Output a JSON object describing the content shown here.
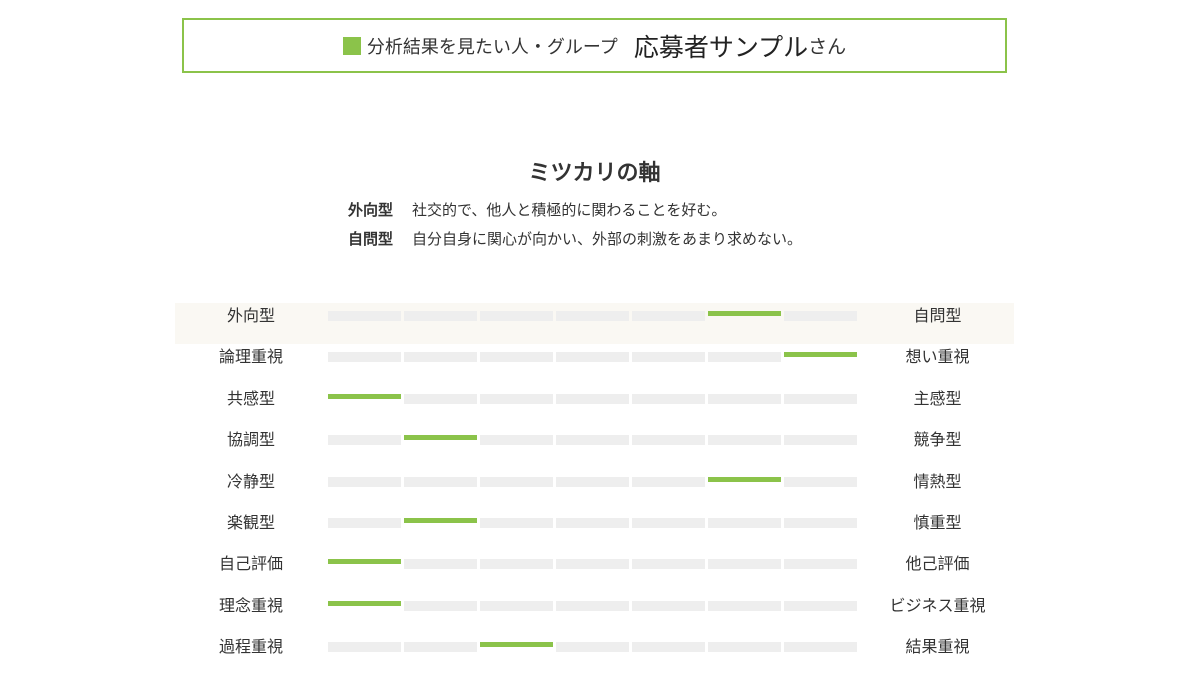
{
  "header": {
    "label": "分析結果を見たい人・グループ",
    "name": "応募者サンプル",
    "suffix": "さん",
    "accent_color": "#8bc34a"
  },
  "axis_section": {
    "title": "ミツカリの軸",
    "legend": [
      {
        "term": "外向型",
        "description": "社交的で、他人と積極的に関わることを好む。"
      },
      {
        "term": "自問型",
        "description": "自分自身に関心が向かい、外部の刺激をあまり求めない。"
      }
    ]
  },
  "scale_steps": 7,
  "axes": [
    {
      "left": "外向型",
      "right": "自問型",
      "position": 6,
      "highlighted": true
    },
    {
      "left": "論理重視",
      "right": "想い重視",
      "position": 7,
      "highlighted": false
    },
    {
      "left": "共感型",
      "right": "主感型",
      "position": 1,
      "highlighted": false
    },
    {
      "left": "協調型",
      "right": "競争型",
      "position": 2,
      "highlighted": false
    },
    {
      "left": "冷静型",
      "right": "情熱型",
      "position": 6,
      "highlighted": false
    },
    {
      "left": "楽観型",
      "right": "慎重型",
      "position": 2,
      "highlighted": false
    },
    {
      "left": "自己評価",
      "right": "他己評価",
      "position": 1,
      "highlighted": false
    },
    {
      "left": "理念重視",
      "right": "ビジネス重視",
      "position": 1,
      "highlighted": false
    },
    {
      "left": "過程重視",
      "right": "結果重視",
      "position": 3,
      "highlighted": false
    }
  ]
}
